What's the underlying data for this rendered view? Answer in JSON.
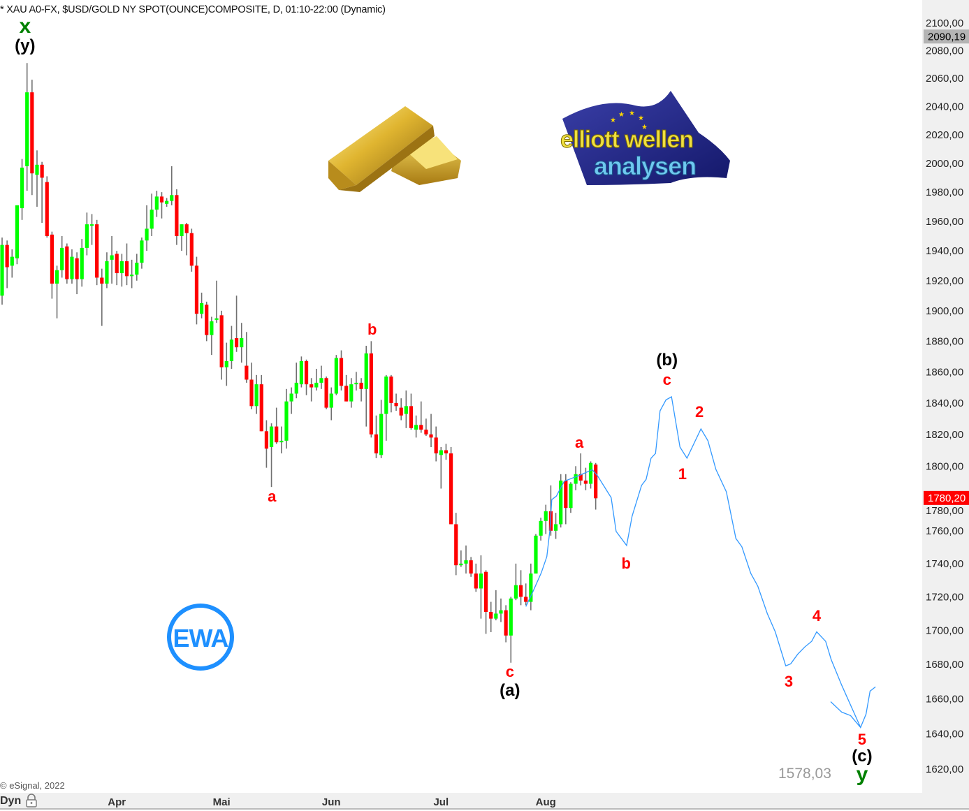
{
  "header": {
    "title": "* XAU A0-FX, $USD/GOLD NY SPOT(OUNCE)COMPOSITE, D, 01:10-22:00 (Dynamic)"
  },
  "footer": {
    "copyright": "© eSignal, 2022",
    "mode_label": "Dyn",
    "lock_icon": "lock-icon"
  },
  "logos": {
    "elliott": {
      "line1": "elliott wellen",
      "line2": "analysen"
    },
    "badge": "EWA",
    "gold_bar_icon": "gold-bars-icon"
  },
  "colors": {
    "up": "#00ff00",
    "down": "#ff0000",
    "wick": "#707070",
    "projection": "#3399ff",
    "wave_red": "#ff0000",
    "wave_black": "#000000",
    "wave_green": "#008000",
    "badge": "#1e90ff"
  },
  "chart_data": {
    "type": "candlestick",
    "title": "* XAU A0-FX, $USD/GOLD NY SPOT(OUNCE)COMPOSITE, D, 01:10-22:00 (Dynamic)",
    "y_scale": "log",
    "ylim": [
      1610,
      2110
    ],
    "grid": false,
    "ohlc_order": [
      "open",
      "high",
      "low",
      "close"
    ],
    "x_ticks": [
      {
        "label": "Apr",
        "index": 23
      },
      {
        "label": "Mai",
        "index": 44
      },
      {
        "label": "Jun",
        "index": 66
      },
      {
        "label": "Jul",
        "index": 88
      },
      {
        "label": "Aug",
        "index": 109
      }
    ],
    "y_ticks": [
      "2100,00",
      "2080,00",
      "2060,00",
      "2040,00",
      "2020,00",
      "2000,00",
      "1980,00",
      "1960,00",
      "1940,00",
      "1920,00",
      "1900,00",
      "1880,00",
      "1860,00",
      "1840,00",
      "1820,00",
      "1800,00",
      "1780,00",
      "1760,00",
      "1740,00",
      "1720,00",
      "1700,00",
      "1680,00",
      "1660,00",
      "1640,00",
      "1620,00"
    ],
    "y_tick_values": [
      2100,
      2080,
      2060,
      2040,
      2020,
      2000,
      1980,
      1960,
      1940,
      1920,
      1900,
      1880,
      1860,
      1840,
      1820,
      1800,
      1780,
      1760,
      1740,
      1720,
      1700,
      1680,
      1660,
      1640,
      1620
    ],
    "price_markers": [
      {
        "label": "2090,19",
        "value": 2090.19,
        "color": "#b4b4b4",
        "text_color": "#000000"
      },
      {
        "label": "1780,20",
        "value": 1780.2,
        "color": "#ff0000",
        "text_color": "#ffffff"
      }
    ],
    "projection_target_label": "1578,03",
    "candles": [
      [
        1910,
        1949,
        1904,
        1944
      ],
      [
        1944,
        1947,
        1915,
        1929
      ],
      [
        1930,
        1941,
        1922,
        1936
      ],
      [
        1935,
        1971,
        1931,
        1971
      ],
      [
        1969,
        2003,
        1961,
        1997
      ],
      [
        1998,
        2071,
        1981,
        2050
      ],
      [
        2050,
        2059,
        1978,
        1993
      ],
      [
        1992,
        2009,
        1970,
        1999
      ],
      [
        1999,
        2001,
        1959,
        1990
      ],
      [
        1987,
        1991,
        1949,
        1950
      ],
      [
        1951,
        1953,
        1908,
        1918
      ],
      [
        1918,
        1930,
        1895,
        1927
      ],
      [
        1927,
        1950,
        1922,
        1942
      ],
      [
        1943,
        1945,
        1918,
        1921
      ],
      [
        1921,
        1941,
        1918,
        1936
      ],
      [
        1935,
        1939,
        1911,
        1921
      ],
      [
        1921,
        1948,
        1916,
        1942
      ],
      [
        1942,
        1966,
        1937,
        1958
      ],
      [
        1957,
        1965,
        1944,
        1958
      ],
      [
        1958,
        1961,
        1917,
        1922
      ],
      [
        1922,
        1928,
        1890,
        1918
      ],
      [
        1918,
        1939,
        1915,
        1933
      ],
      [
        1934,
        1950,
        1918,
        1937
      ],
      [
        1938,
        1940,
        1917,
        1925
      ],
      [
        1925,
        1938,
        1916,
        1933
      ],
      [
        1933,
        1945,
        1917,
        1923
      ],
      [
        1923,
        1934,
        1915,
        1924
      ],
      [
        1924,
        1938,
        1920,
        1932
      ],
      [
        1932,
        1949,
        1928,
        1947
      ],
      [
        1947,
        1971,
        1940,
        1955
      ],
      [
        1955,
        1979,
        1950,
        1968
      ],
      [
        1968,
        1981,
        1963,
        1977
      ],
      [
        1977,
        1980,
        1962,
        1973
      ],
      [
        1972,
        1976,
        1970,
        1974
      ],
      [
        1974,
        1998,
        1971,
        1978
      ],
      [
        1978,
        1982,
        1944,
        1950
      ],
      [
        1950,
        1958,
        1940,
        1958
      ],
      [
        1958,
        1959,
        1937,
        1952
      ],
      [
        1952,
        1955,
        1926,
        1930
      ],
      [
        1930,
        1936,
        1891,
        1898
      ],
      [
        1898,
        1912,
        1895,
        1905
      ],
      [
        1904,
        1906,
        1880,
        1884
      ],
      [
        1884,
        1896,
        1871,
        1893
      ],
      [
        1894,
        1920,
        1892,
        1895
      ],
      [
        1897,
        1900,
        1855,
        1863
      ],
      [
        1863,
        1879,
        1851,
        1867
      ],
      [
        1867,
        1890,
        1862,
        1881
      ],
      [
        1882,
        1910,
        1873,
        1876
      ],
      [
        1876,
        1892,
        1866,
        1882
      ],
      [
        1864,
        1886,
        1853,
        1855
      ],
      [
        1855,
        1866,
        1836,
        1838
      ],
      [
        1838,
        1858,
        1833,
        1852
      ],
      [
        1852,
        1858,
        1822,
        1822
      ],
      [
        1822,
        1829,
        1799,
        1811
      ],
      [
        1812,
        1827,
        1787,
        1825
      ],
      [
        1825,
        1837,
        1814,
        1815
      ],
      [
        1815,
        1825,
        1808,
        1816
      ],
      [
        1816,
        1849,
        1811,
        1841
      ],
      [
        1841,
        1850,
        1833,
        1846
      ],
      [
        1846,
        1866,
        1843,
        1853
      ],
      [
        1852,
        1870,
        1850,
        1867
      ],
      [
        1867,
        1868,
        1845,
        1852
      ],
      [
        1852,
        1856,
        1841,
        1850
      ],
      [
        1850,
        1862,
        1848,
        1853
      ],
      [
        1853,
        1864,
        1849,
        1856
      ],
      [
        1856,
        1857,
        1836,
        1837
      ],
      [
        1837,
        1850,
        1829,
        1846
      ],
      [
        1846,
        1871,
        1845,
        1869
      ],
      [
        1869,
        1874,
        1848,
        1851
      ],
      [
        1851,
        1858,
        1841,
        1841
      ],
      [
        1841,
        1856,
        1837,
        1852
      ],
      [
        1852,
        1860,
        1848,
        1853
      ],
      [
        1853,
        1856,
        1841,
        1849
      ],
      [
        1849,
        1877,
        1825,
        1872
      ],
      [
        1872,
        1880,
        1818,
        1820
      ],
      [
        1820,
        1832,
        1805,
        1808
      ],
      [
        1807,
        1842,
        1805,
        1833
      ],
      [
        1833,
        1858,
        1816,
        1857
      ],
      [
        1857,
        1858,
        1834,
        1840
      ],
      [
        1840,
        1846,
        1835,
        1838
      ],
      [
        1837,
        1843,
        1829,
        1832
      ],
      [
        1833,
        1848,
        1824,
        1838
      ],
      [
        1838,
        1846,
        1823,
        1824
      ],
      [
        1823,
        1832,
        1818,
        1826
      ],
      [
        1826,
        1841,
        1821,
        1823
      ],
      [
        1823,
        1830,
        1819,
        1820
      ],
      [
        1820,
        1833,
        1812,
        1818
      ],
      [
        1818,
        1825,
        1803,
        1808
      ],
      [
        1807,
        1812,
        1786,
        1810
      ],
      [
        1810,
        1814,
        1804,
        1808
      ],
      [
        1808,
        1812,
        1764,
        1764
      ],
      [
        1764,
        1771,
        1733,
        1739
      ],
      [
        1739,
        1748,
        1738,
        1740
      ],
      [
        1740,
        1751,
        1734,
        1742
      ],
      [
        1742,
        1744,
        1732,
        1734
      ],
      [
        1734,
        1740,
        1723,
        1725
      ],
      [
        1725,
        1745,
        1707,
        1734
      ],
      [
        1735,
        1736,
        1698,
        1711
      ],
      [
        1711,
        1717,
        1699,
        1707
      ],
      [
        1707,
        1724,
        1706,
        1710
      ],
      [
        1710,
        1719,
        1705,
        1712
      ],
      [
        1712,
        1715,
        1693,
        1697
      ],
      [
        1697,
        1720,
        1681,
        1719
      ],
      [
        1719,
        1740,
        1718,
        1727
      ],
      [
        1727,
        1736,
        1715,
        1720
      ],
      [
        1720,
        1728,
        1715,
        1717
      ],
      [
        1717,
        1740,
        1712,
        1734
      ],
      [
        1734,
        1758,
        1734,
        1757
      ],
      [
        1757,
        1768,
        1754,
        1766
      ],
      [
        1766,
        1776,
        1758,
        1772
      ],
      [
        1772,
        1788,
        1757,
        1760
      ],
      [
        1760,
        1771,
        1755,
        1764
      ],
      [
        1764,
        1795,
        1762,
        1791
      ],
      [
        1791,
        1795,
        1764,
        1774
      ],
      [
        1774,
        1790,
        1771,
        1789
      ],
      [
        1789,
        1800,
        1785,
        1795
      ],
      [
        1795,
        1808,
        1788,
        1791
      ],
      [
        1791,
        1799,
        1785,
        1789
      ],
      [
        1789,
        1803,
        1786,
        1802
      ],
      [
        1801,
        1802,
        1773,
        1780
      ]
    ],
    "projection_path": [
      [
        105.0,
        1714.2
      ],
      [
        106.4,
        1723
      ],
      [
        108.1,
        1734.5
      ],
      [
        109.2,
        1744.2
      ],
      [
        109.8,
        1760
      ],
      [
        110.2,
        1779.2
      ],
      [
        111.1,
        1781.3
      ],
      [
        112.7,
        1790.6
      ],
      [
        115.8,
        1794.3
      ],
      [
        118.3,
        1797.8
      ],
      [
        119.3,
        1794.3
      ],
      [
        122.1,
        1780.4
      ],
      [
        123.1,
        1759.6
      ],
      [
        125.2,
        1751
      ],
      [
        126.3,
        1769
      ],
      [
        128.2,
        1788
      ],
      [
        129.1,
        1791.7
      ],
      [
        130.1,
        1805
      ],
      [
        131.0,
        1808
      ],
      [
        131.9,
        1835
      ],
      [
        133.1,
        1842
      ],
      [
        134.2,
        1844
      ],
      [
        135.9,
        1812
      ],
      [
        137.3,
        1805
      ],
      [
        140.1,
        1823.5
      ],
      [
        141.5,
        1816
      ],
      [
        143.1,
        1798
      ],
      [
        145.2,
        1784
      ],
      [
        147.1,
        1755.3
      ],
      [
        148.3,
        1750.2
      ],
      [
        150.1,
        1734
      ],
      [
        151.5,
        1726.4
      ],
      [
        153.4,
        1710
      ],
      [
        155.0,
        1699.2
      ],
      [
        157.1,
        1679.2
      ],
      [
        158.1,
        1680.4
      ],
      [
        159.5,
        1686
      ],
      [
        160.9,
        1690.2
      ],
      [
        162.3,
        1693.6
      ],
      [
        163.3,
        1699.2
      ],
      [
        165.1,
        1693.6
      ],
      [
        166.2,
        1682.9
      ],
      [
        168.3,
        1668
      ],
      [
        172.1,
        1643.6
      ],
      [
        173.2,
        1651.2
      ],
      [
        174.0,
        1664.5
      ],
      [
        175.1,
        1667
      ]
    ],
    "projection_branch": [
      [
        166.1,
        1658.4
      ],
      [
        168.3,
        1652.4
      ],
      [
        170.1,
        1650.4
      ],
      [
        172.1,
        1643.6
      ]
    ],
    "annotations": [
      {
        "text": "x",
        "index": 4.6,
        "price": 2098,
        "style": "green"
      },
      {
        "text": "(y)",
        "index": 4.6,
        "price": 2083,
        "style": "black"
      },
      {
        "text": "a",
        "index": 54.1,
        "price": 1780.9,
        "style": "red"
      },
      {
        "text": "b",
        "index": 74.2,
        "price": 1887.4,
        "style": "red"
      },
      {
        "text": "c",
        "index": 101.8,
        "price": 1675.5,
        "style": "red"
      },
      {
        "text": "(a)",
        "index": 101.8,
        "price": 1664.6,
        "style": "black"
      },
      {
        "text": "a",
        "index": 115.7,
        "price": 1814.7,
        "style": "red"
      },
      {
        "text": "b",
        "index": 125.1,
        "price": 1740,
        "style": "red"
      },
      {
        "text": "(b)",
        "index": 133.3,
        "price": 1867.3,
        "style": "black"
      },
      {
        "text": "c",
        "index": 133.3,
        "price": 1854.6,
        "style": "red"
      },
      {
        "text": "1",
        "index": 136.4,
        "price": 1794.8,
        "style": "red"
      },
      {
        "text": "2",
        "index": 139.8,
        "price": 1834,
        "style": "red"
      },
      {
        "text": "3",
        "index": 157.7,
        "price": 1670,
        "style": "red"
      },
      {
        "text": "4",
        "index": 163.3,
        "price": 1708.7,
        "style": "red"
      },
      {
        "text": "5",
        "index": 172.4,
        "price": 1636.6,
        "style": "red"
      },
      {
        "text": "(c)",
        "index": 172.4,
        "price": 1629,
        "style": "black"
      },
      {
        "text": "y",
        "index": 172.4,
        "price": 1620.2,
        "style": "green"
      }
    ]
  }
}
